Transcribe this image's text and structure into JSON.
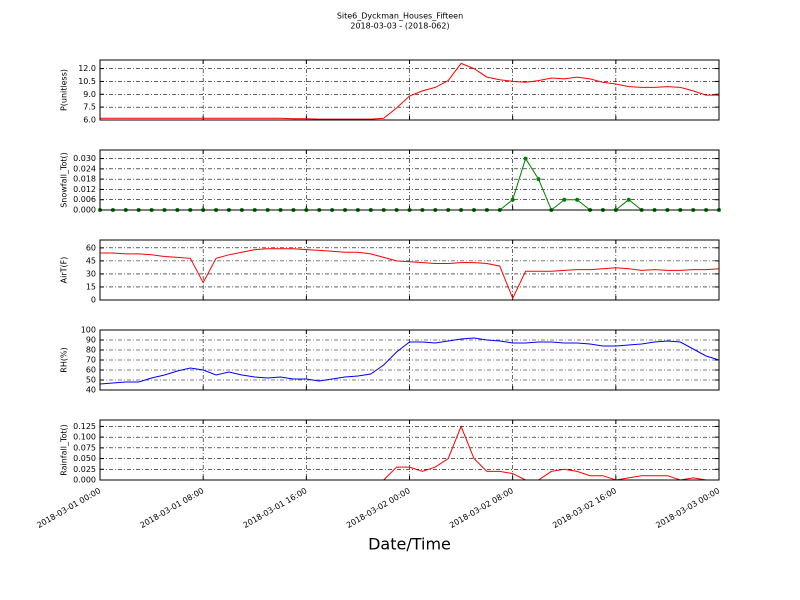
{
  "chart_data": [
    {
      "type": "line",
      "title": "Site6_Dyckman_Houses_Fifteen",
      "subtitle": "2018-03-03 - (2018-062)",
      "ylabel": "P(unitless)",
      "color": "#ff0000",
      "x": [
        "2018-03-01 00:00",
        "2018-03-01 01:00",
        "2018-03-01 02:00",
        "2018-03-01 03:00",
        "2018-03-01 04:00",
        "2018-03-01 05:00",
        "2018-03-01 06:00",
        "2018-03-01 07:00",
        "2018-03-01 08:00",
        "2018-03-01 09:00",
        "2018-03-01 10:00",
        "2018-03-01 11:00",
        "2018-03-01 12:00",
        "2018-03-01 13:00",
        "2018-03-01 14:00",
        "2018-03-01 15:00",
        "2018-03-01 16:00",
        "2018-03-01 17:00",
        "2018-03-01 18:00",
        "2018-03-01 19:00",
        "2018-03-01 20:00",
        "2018-03-01 21:00",
        "2018-03-01 22:00",
        "2018-03-01 23:00",
        "2018-03-02 00:00",
        "2018-03-02 01:00",
        "2018-03-02 02:00",
        "2018-03-02 03:00",
        "2018-03-02 04:00",
        "2018-03-02 05:00",
        "2018-03-02 06:00",
        "2018-03-02 07:00",
        "2018-03-02 08:00",
        "2018-03-02 09:00",
        "2018-03-02 10:00",
        "2018-03-02 11:00",
        "2018-03-02 12:00",
        "2018-03-02 13:00",
        "2018-03-02 14:00",
        "2018-03-02 15:00",
        "2018-03-02 16:00",
        "2018-03-02 17:00",
        "2018-03-02 18:00",
        "2018-03-02 19:00",
        "2018-03-02 20:00",
        "2018-03-02 21:00",
        "2018-03-02 22:00",
        "2018-03-02 23:00",
        "2018-03-03 00:00"
      ],
      "values": [
        6.2,
        6.2,
        6.2,
        6.2,
        6.2,
        6.2,
        6.2,
        6.2,
        6.2,
        6.2,
        6.2,
        6.2,
        6.2,
        6.2,
        6.2,
        6.15,
        6.15,
        6.1,
        6.1,
        6.1,
        6.1,
        6.1,
        6.2,
        7.4,
        8.8,
        9.4,
        9.8,
        10.6,
        12.6,
        12.0,
        11.0,
        10.7,
        10.5,
        10.4,
        10.6,
        10.9,
        10.8,
        11.0,
        10.8,
        10.4,
        10.2,
        9.9,
        9.8,
        9.8,
        9.9,
        9.8,
        9.4,
        8.9,
        8.9
      ],
      "xlim": [
        "2018-03-01 00:00",
        "2018-03-03 00:00"
      ],
      "xticks": [
        "2018-03-01 00:00",
        "2018-03-01 08:00",
        "2018-03-01 16:00",
        "2018-03-02 00:00",
        "2018-03-02 08:00",
        "2018-03-02 16:00",
        "2018-03-03 00:00"
      ],
      "ylim": [
        6,
        13
      ],
      "yticks": [
        {
          "value": 6,
          "label": "6.0"
        },
        7.5,
        {
          "value": 9,
          "label": "9.0"
        },
        10.5,
        {
          "value": 12,
          "label": "12.0"
        }
      ],
      "grid": true
    },
    {
      "type": "line",
      "ylabel": "Snowfall_Tot()",
      "color": "#007f00",
      "marker": "o",
      "x": [
        "2018-03-01 00:00",
        "2018-03-01 01:00",
        "2018-03-01 02:00",
        "2018-03-01 03:00",
        "2018-03-01 04:00",
        "2018-03-01 05:00",
        "2018-03-01 06:00",
        "2018-03-01 07:00",
        "2018-03-01 08:00",
        "2018-03-01 09:00",
        "2018-03-01 10:00",
        "2018-03-01 11:00",
        "2018-03-01 12:00",
        "2018-03-01 13:00",
        "2018-03-01 14:00",
        "2018-03-01 15:00",
        "2018-03-01 16:00",
        "2018-03-01 17:00",
        "2018-03-01 18:00",
        "2018-03-01 19:00",
        "2018-03-01 20:00",
        "2018-03-01 21:00",
        "2018-03-01 22:00",
        "2018-03-01 23:00",
        "2018-03-02 00:00",
        "2018-03-02 01:00",
        "2018-03-02 02:00",
        "2018-03-02 03:00",
        "2018-03-02 04:00",
        "2018-03-02 05:00",
        "2018-03-02 06:00",
        "2018-03-02 07:00",
        "2018-03-02 08:00",
        "2018-03-02 09:00",
        "2018-03-02 10:00",
        "2018-03-02 11:00",
        "2018-03-02 12:00",
        "2018-03-02 13:00",
        "2018-03-02 14:00",
        "2018-03-02 15:00",
        "2018-03-02 16:00",
        "2018-03-02 17:00",
        "2018-03-02 18:00",
        "2018-03-02 19:00",
        "2018-03-02 20:00",
        "2018-03-02 21:00",
        "2018-03-02 22:00",
        "2018-03-02 23:00",
        "2018-03-03 00:00"
      ],
      "values": [
        0,
        0,
        0,
        0,
        0,
        0,
        0,
        0,
        0,
        0,
        0,
        0,
        0,
        0,
        0,
        0,
        0,
        0,
        0,
        0,
        0,
        0,
        0,
        0,
        0,
        0,
        0,
        0,
        0,
        0,
        0,
        0,
        0.006,
        0.03,
        0.018,
        0,
        0.006,
        0.006,
        0,
        0,
        0,
        0.006,
        0,
        0,
        0,
        0,
        0,
        0,
        0
      ],
      "xlim": [
        "2018-03-01 00:00",
        "2018-03-03 00:00"
      ],
      "xticks": [
        "2018-03-01 00:00",
        "2018-03-01 08:00",
        "2018-03-01 16:00",
        "2018-03-02 00:00",
        "2018-03-02 08:00",
        "2018-03-02 16:00",
        "2018-03-03 00:00"
      ],
      "ylim": [
        0,
        0.035
      ],
      "yticks": [
        {
          "value": 0,
          "label": "0.000"
        },
        0.006,
        0.012,
        0.018,
        0.024,
        {
          "value": 0.03,
          "label": "0.030"
        }
      ],
      "grid": true
    },
    {
      "type": "line",
      "ylabel": "AirT(F)",
      "color": "#ff0000",
      "x": [
        "2018-03-01 00:00",
        "2018-03-01 01:00",
        "2018-03-01 02:00",
        "2018-03-01 03:00",
        "2018-03-01 04:00",
        "2018-03-01 05:00",
        "2018-03-01 06:00",
        "2018-03-01 07:00",
        "2018-03-01 08:00",
        "2018-03-01 09:00",
        "2018-03-01 10:00",
        "2018-03-01 11:00",
        "2018-03-01 12:00",
        "2018-03-01 13:00",
        "2018-03-01 14:00",
        "2018-03-01 15:00",
        "2018-03-01 16:00",
        "2018-03-01 17:00",
        "2018-03-01 18:00",
        "2018-03-01 19:00",
        "2018-03-01 20:00",
        "2018-03-01 21:00",
        "2018-03-01 22:00",
        "2018-03-01 23:00",
        "2018-03-02 00:00",
        "2018-03-02 01:00",
        "2018-03-02 02:00",
        "2018-03-02 03:00",
        "2018-03-02 04:00",
        "2018-03-02 05:00",
        "2018-03-02 06:00",
        "2018-03-02 07:00",
        "2018-03-02 08:00",
        "2018-03-02 09:00",
        "2018-03-02 10:00",
        "2018-03-02 11:00",
        "2018-03-02 12:00",
        "2018-03-02 13:00",
        "2018-03-02 14:00",
        "2018-03-02 15:00",
        "2018-03-02 16:00",
        "2018-03-02 17:00",
        "2018-03-02 18:00",
        "2018-03-02 19:00",
        "2018-03-02 20:00",
        "2018-03-02 21:00",
        "2018-03-02 22:00",
        "2018-03-02 23:00",
        "2018-03-03 00:00"
      ],
      "values": [
        54,
        54,
        53,
        53,
        52,
        50,
        49,
        48,
        20,
        48,
        52,
        55,
        58,
        59,
        59,
        59,
        58,
        57,
        56,
        55,
        55,
        53,
        49,
        45,
        44,
        43,
        42,
        42,
        43,
        43,
        42,
        39,
        2,
        33,
        33,
        33,
        34,
        35,
        35,
        36,
        37,
        36,
        34,
        35,
        34,
        34,
        35,
        35,
        36
      ],
      "xlim": [
        "2018-03-01 00:00",
        "2018-03-03 00:00"
      ],
      "xticks": [
        "2018-03-01 00:00",
        "2018-03-01 08:00",
        "2018-03-01 16:00",
        "2018-03-02 00:00",
        "2018-03-02 08:00",
        "2018-03-02 16:00",
        "2018-03-03 00:00"
      ],
      "ylim": [
        0,
        69
      ],
      "yticks": [
        0,
        15,
        30,
        45,
        60
      ],
      "grid": true
    },
    {
      "type": "line",
      "ylabel": "RH(%)",
      "color": "#0000ff",
      "x": [
        "2018-03-01 00:00",
        "2018-03-01 01:00",
        "2018-03-01 02:00",
        "2018-03-01 03:00",
        "2018-03-01 04:00",
        "2018-03-01 05:00",
        "2018-03-01 06:00",
        "2018-03-01 07:00",
        "2018-03-01 08:00",
        "2018-03-01 09:00",
        "2018-03-01 10:00",
        "2018-03-01 11:00",
        "2018-03-01 12:00",
        "2018-03-01 13:00",
        "2018-03-01 14:00",
        "2018-03-01 15:00",
        "2018-03-01 16:00",
        "2018-03-01 17:00",
        "2018-03-01 18:00",
        "2018-03-01 19:00",
        "2018-03-01 20:00",
        "2018-03-01 21:00",
        "2018-03-01 22:00",
        "2018-03-01 23:00",
        "2018-03-02 00:00",
        "2018-03-02 01:00",
        "2018-03-02 02:00",
        "2018-03-02 03:00",
        "2018-03-02 04:00",
        "2018-03-02 05:00",
        "2018-03-02 06:00",
        "2018-03-02 07:00",
        "2018-03-02 08:00",
        "2018-03-02 09:00",
        "2018-03-02 10:00",
        "2018-03-02 11:00",
        "2018-03-02 12:00",
        "2018-03-02 13:00",
        "2018-03-02 14:00",
        "2018-03-02 15:00",
        "2018-03-02 16:00",
        "2018-03-02 17:00",
        "2018-03-02 18:00",
        "2018-03-02 19:00",
        "2018-03-02 20:00",
        "2018-03-02 21:00",
        "2018-03-02 22:00",
        "2018-03-02 23:00",
        "2018-03-03 00:00"
      ],
      "values": [
        46,
        47,
        48,
        48,
        52,
        55,
        59,
        62,
        60,
        55,
        58,
        55,
        53,
        52,
        53,
        51,
        51,
        49,
        51,
        53,
        54,
        56,
        65,
        78,
        88,
        88,
        87,
        89,
        91,
        92,
        90,
        89,
        87,
        87,
        88,
        88,
        87,
        87,
        86,
        84,
        84,
        85,
        86,
        88,
        89,
        88,
        81,
        74,
        70
      ],
      "xlim": [
        "2018-03-01 00:00",
        "2018-03-03 00:00"
      ],
      "xticks": [
        "2018-03-01 00:00",
        "2018-03-01 08:00",
        "2018-03-01 16:00",
        "2018-03-02 00:00",
        "2018-03-02 08:00",
        "2018-03-02 16:00",
        "2018-03-03 00:00"
      ],
      "ylim": [
        40,
        100
      ],
      "yticks": [
        40,
        50,
        60,
        70,
        80,
        90,
        100
      ],
      "grid": true
    },
    {
      "type": "line",
      "ylabel": "Rainfall_Tot()",
      "xlabel": "Date/Time",
      "color": "#ff0000",
      "x": [
        "2018-03-01 00:00",
        "2018-03-01 01:00",
        "2018-03-01 02:00",
        "2018-03-01 03:00",
        "2018-03-01 04:00",
        "2018-03-01 05:00",
        "2018-03-01 06:00",
        "2018-03-01 07:00",
        "2018-03-01 08:00",
        "2018-03-01 09:00",
        "2018-03-01 10:00",
        "2018-03-01 11:00",
        "2018-03-01 12:00",
        "2018-03-01 13:00",
        "2018-03-01 14:00",
        "2018-03-01 15:00",
        "2018-03-01 16:00",
        "2018-03-01 17:00",
        "2018-03-01 18:00",
        "2018-03-01 19:00",
        "2018-03-01 20:00",
        "2018-03-01 21:00",
        "2018-03-01 22:00",
        "2018-03-01 23:00",
        "2018-03-02 00:00",
        "2018-03-02 01:00",
        "2018-03-02 02:00",
        "2018-03-02 03:00",
        "2018-03-02 04:00",
        "2018-03-02 05:00",
        "2018-03-02 06:00",
        "2018-03-02 07:00",
        "2018-03-02 08:00",
        "2018-03-02 09:00",
        "2018-03-02 10:00",
        "2018-03-02 11:00",
        "2018-03-02 12:00",
        "2018-03-02 13:00",
        "2018-03-02 14:00",
        "2018-03-02 15:00",
        "2018-03-02 16:00",
        "2018-03-02 17:00",
        "2018-03-02 18:00",
        "2018-03-02 19:00",
        "2018-03-02 20:00",
        "2018-03-02 21:00",
        "2018-03-02 22:00",
        "2018-03-02 23:00",
        "2018-03-03 00:00"
      ],
      "values": [
        0,
        0,
        0,
        0,
        0,
        0,
        0,
        0,
        0,
        0,
        0,
        0,
        0,
        0,
        0,
        0,
        0,
        0,
        0,
        0,
        0,
        0,
        0,
        0.03,
        0.03,
        0.02,
        0.03,
        0.05,
        0.125,
        0.05,
        0.02,
        0.02,
        0.015,
        0,
        0,
        0.02,
        0.025,
        0.02,
        0.01,
        0.01,
        0,
        0.005,
        0.01,
        0.01,
        0.01,
        0,
        0.005,
        0,
        0
      ],
      "xlim": [
        "2018-03-01 00:00",
        "2018-03-03 00:00"
      ],
      "xticks": [
        "2018-03-01 00:00",
        "2018-03-01 08:00",
        "2018-03-01 16:00",
        "2018-03-02 00:00",
        "2018-03-02 08:00",
        "2018-03-02 16:00",
        "2018-03-03 00:00"
      ],
      "ylim": [
        0,
        0.14
      ],
      "yticks": [
        {
          "value": 0,
          "label": "0.000"
        },
        0.025,
        {
          "value": 0.05,
          "label": "0.050"
        },
        0.075,
        {
          "value": 0.1,
          "label": "0.100"
        },
        0.125
      ],
      "grid": true
    }
  ]
}
